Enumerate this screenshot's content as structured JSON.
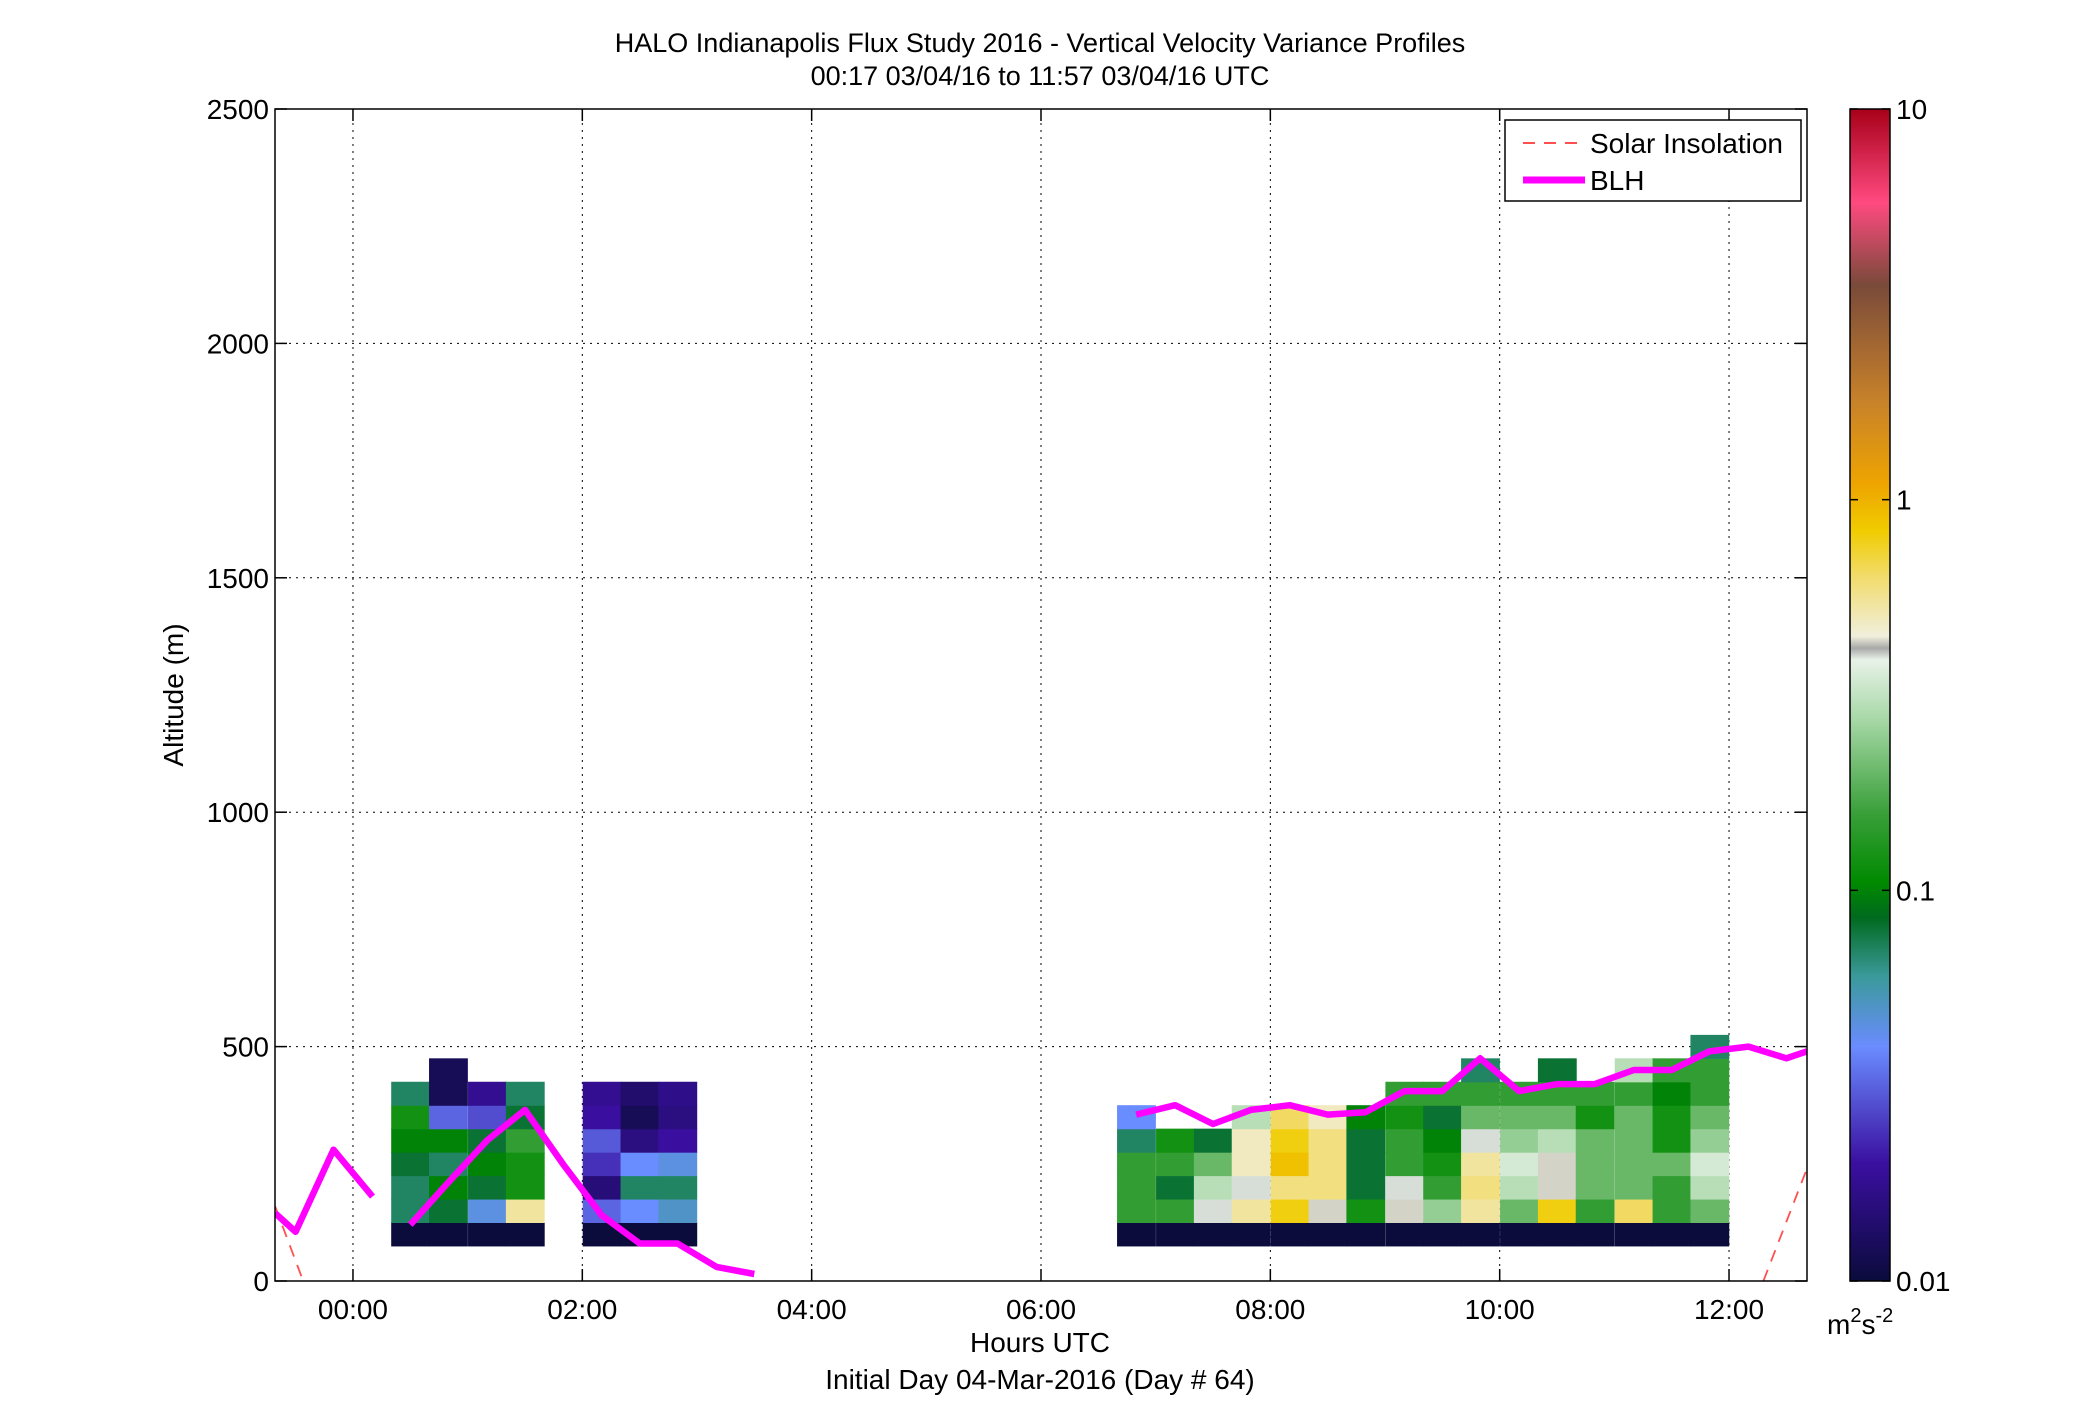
{
  "chart_data": {
    "type": "heatmap",
    "title": "HALO Indianapolis Flux Study 2016 - Vertical Velocity Variance Profiles",
    "subtitle": "00:17 03/04/16 to 11:57 03/04/16  UTC",
    "xlabel": "Hours UTC",
    "xlabel2": "Initial Day 04-Mar-2016 (Day # 64)",
    "ylabel": "Altitude (m)",
    "xlim": [
      -0.68,
      12.68
    ],
    "ylim": [
      0,
      2500
    ],
    "x_ticks": [
      0,
      2,
      4,
      6,
      8,
      10,
      12
    ],
    "x_tick_labels": [
      "00:00",
      "02:00",
      "04:00",
      "06:00",
      "08:00",
      "10:00",
      "12:00"
    ],
    "y_ticks": [
      0,
      500,
      1000,
      1500,
      2000,
      2500
    ],
    "y_tick_labels": [
      "0",
      "500",
      "1000",
      "1500",
      "2000",
      "2500"
    ],
    "grid": true,
    "legend_position": "top-right",
    "colorbar": {
      "scale": "log",
      "min": 0.01,
      "max": 10,
      "ticks": [
        0.01,
        0.1,
        1,
        10
      ],
      "tick_labels": [
        "0.01",
        "0.1",
        "1",
        "10"
      ],
      "units_base": "m",
      "units_sup1": "2",
      "units_mid": "s",
      "units_sup2": "-2"
    },
    "variance_columns": [
      {
        "t": 0.5,
        "cells": [
          [
            100,
            0.01
          ],
          [
            150,
            0.07
          ],
          [
            200,
            0.07
          ],
          [
            250,
            0.08
          ],
          [
            300,
            0.1
          ],
          [
            350,
            0.12
          ],
          [
            400,
            0.07
          ]
        ]
      },
      {
        "t": 0.83,
        "cells": [
          [
            100,
            0.01
          ],
          [
            150,
            0.08
          ],
          [
            200,
            0.1
          ],
          [
            250,
            0.07
          ],
          [
            300,
            0.1
          ],
          [
            350,
            0.032
          ],
          [
            400,
            0.012
          ],
          [
            450,
            0.012
          ]
        ]
      },
      {
        "t": 1.17,
        "cells": [
          [
            100,
            0.01
          ],
          [
            150,
            0.045
          ],
          [
            200,
            0.08
          ],
          [
            250,
            0.1
          ],
          [
            300,
            0.08
          ],
          [
            350,
            0.028
          ],
          [
            400,
            0.018
          ]
        ]
      },
      {
        "t": 1.5,
        "cells": [
          [
            100,
            0.01
          ],
          [
            150,
            0.55
          ],
          [
            200,
            0.12
          ],
          [
            250,
            0.12
          ],
          [
            300,
            0.15
          ],
          [
            350,
            0.08
          ],
          [
            400,
            0.07
          ]
        ]
      },
      {
        "t": 2.17,
        "cells": [
          [
            100,
            0.01
          ],
          [
            150,
            0.032
          ],
          [
            200,
            0.015
          ],
          [
            250,
            0.024
          ],
          [
            300,
            0.03
          ],
          [
            350,
            0.02
          ],
          [
            400,
            0.018
          ]
        ]
      },
      {
        "t": 2.5,
        "cells": [
          [
            100,
            0.01
          ],
          [
            150,
            0.04
          ],
          [
            200,
            0.07
          ],
          [
            250,
            0.04
          ],
          [
            300,
            0.016
          ],
          [
            350,
            0.012
          ],
          [
            400,
            0.014
          ]
        ]
      },
      {
        "t": 2.83,
        "cells": [
          [
            100,
            0.01
          ],
          [
            150,
            0.05
          ],
          [
            200,
            0.07
          ],
          [
            250,
            0.045
          ],
          [
            300,
            0.02
          ],
          [
            350,
            0.016
          ],
          [
            400,
            0.017
          ]
        ]
      },
      {
        "t": 6.83,
        "cells": [
          [
            100,
            0.01
          ],
          [
            150,
            0.15
          ],
          [
            200,
            0.15
          ],
          [
            250,
            0.15
          ],
          [
            300,
            0.07
          ],
          [
            350,
            0.04
          ]
        ]
      },
      {
        "t": 7.17,
        "cells": [
          [
            100,
            0.01
          ],
          [
            150,
            0.15
          ],
          [
            200,
            0.08
          ],
          [
            250,
            0.15
          ],
          [
            300,
            0.12
          ]
        ]
      },
      {
        "t": 7.5,
        "cells": [
          [
            100,
            0.01
          ],
          [
            150,
            0.4
          ],
          [
            200,
            0.3
          ],
          [
            250,
            0.2
          ],
          [
            300,
            0.08
          ]
        ]
      },
      {
        "t": 7.83,
        "cells": [
          [
            100,
            0.01
          ],
          [
            150,
            0.55
          ],
          [
            200,
            0.4
          ],
          [
            250,
            0.5
          ],
          [
            300,
            0.5
          ],
          [
            350,
            0.3
          ]
        ]
      },
      {
        "t": 8.17,
        "cells": [
          [
            100,
            0.01
          ],
          [
            150,
            0.8
          ],
          [
            200,
            0.6
          ],
          [
            250,
            0.9
          ],
          [
            300,
            0.8
          ],
          [
            350,
            0.65
          ]
        ]
      },
      {
        "t": 8.5,
        "cells": [
          [
            100,
            0.01
          ],
          [
            150,
            0.45
          ],
          [
            200,
            0.6
          ],
          [
            250,
            0.6
          ],
          [
            300,
            0.6
          ],
          [
            350,
            0.5
          ]
        ]
      },
      {
        "t": 8.83,
        "cells": [
          [
            100,
            0.01
          ],
          [
            150,
            0.12
          ],
          [
            200,
            0.08
          ],
          [
            250,
            0.08
          ],
          [
            300,
            0.08
          ],
          [
            350,
            0.1
          ]
        ]
      },
      {
        "t": 9.17,
        "cells": [
          [
            100,
            0.01
          ],
          [
            150,
            0.45
          ],
          [
            200,
            0.4
          ],
          [
            250,
            0.15
          ],
          [
            300,
            0.15
          ],
          [
            350,
            0.12
          ],
          [
            400,
            0.15
          ]
        ]
      },
      {
        "t": 9.5,
        "cells": [
          [
            100,
            0.01
          ],
          [
            150,
            0.25
          ],
          [
            200,
            0.15
          ],
          [
            250,
            0.12
          ],
          [
            300,
            0.1
          ],
          [
            350,
            0.08
          ],
          [
            400,
            0.15
          ]
        ]
      },
      {
        "t": 9.83,
        "cells": [
          [
            100,
            0.01
          ],
          [
            150,
            0.55
          ],
          [
            200,
            0.6
          ],
          [
            250,
            0.55
          ],
          [
            300,
            0.4
          ],
          [
            350,
            0.2
          ],
          [
            400,
            0.15
          ],
          [
            450,
            0.07
          ]
        ]
      },
      {
        "t": 10.17,
        "cells": [
          [
            100,
            0.01
          ],
          [
            150,
            0.2
          ],
          [
            200,
            0.3
          ],
          [
            250,
            0.35
          ],
          [
            300,
            0.25
          ],
          [
            350,
            0.2
          ],
          [
            400,
            0.15
          ]
        ]
      },
      {
        "t": 10.5,
        "cells": [
          [
            100,
            0.01
          ],
          [
            150,
            0.8
          ],
          [
            200,
            0.45
          ],
          [
            250,
            0.45
          ],
          [
            300,
            0.3
          ],
          [
            350,
            0.2
          ],
          [
            400,
            0.15
          ],
          [
            450,
            0.08
          ]
        ]
      },
      {
        "t": 10.83,
        "cells": [
          [
            100,
            0.01
          ],
          [
            150,
            0.15
          ],
          [
            200,
            0.2
          ],
          [
            250,
            0.2
          ],
          [
            300,
            0.2
          ],
          [
            350,
            0.12
          ],
          [
            400,
            0.15
          ]
        ]
      },
      {
        "t": 11.17,
        "cells": [
          [
            100,
            0.01
          ],
          [
            150,
            0.65
          ],
          [
            200,
            0.2
          ],
          [
            250,
            0.2
          ],
          [
            300,
            0.2
          ],
          [
            350,
            0.2
          ],
          [
            400,
            0.15
          ],
          [
            450,
            0.3
          ]
        ]
      },
      {
        "t": 11.5,
        "cells": [
          [
            100,
            0.01
          ],
          [
            150,
            0.15
          ],
          [
            200,
            0.15
          ],
          [
            250,
            0.2
          ],
          [
            300,
            0.12
          ],
          [
            350,
            0.12
          ],
          [
            400,
            0.1
          ],
          [
            450,
            0.15
          ]
        ]
      },
      {
        "t": 11.83,
        "cells": [
          [
            100,
            0.01
          ],
          [
            150,
            0.2
          ],
          [
            200,
            0.3
          ],
          [
            250,
            0.35
          ],
          [
            300,
            0.25
          ],
          [
            350,
            0.2
          ],
          [
            400,
            0.15
          ],
          [
            450,
            0.15
          ],
          [
            500,
            0.07
          ]
        ]
      }
    ],
    "series": [
      {
        "name": "Solar Insolation",
        "color": "#ff5050",
        "style": "dashed",
        "segments": [
          [
            [
              -0.68,
              160
            ],
            [
              -0.45,
              10
            ]
          ],
          [
            [
              12.3,
              0
            ],
            [
              12.68,
              240
            ]
          ]
        ]
      },
      {
        "name": "BLH",
        "color": "#ff00ff",
        "style": "solid",
        "segments": [
          [
            [
              -0.68,
              145
            ],
            [
              -0.5,
              105
            ],
            [
              -0.17,
              280
            ],
            [
              0.17,
              180
            ]
          ],
          [
            [
              0.5,
              120
            ],
            [
              0.83,
              210
            ],
            [
              1.17,
              300
            ],
            [
              1.5,
              365
            ],
            [
              1.83,
              250
            ],
            [
              2.17,
              140
            ],
            [
              2.5,
              80
            ],
            [
              2.83,
              80
            ],
            [
              3.17,
              30
            ],
            [
              3.5,
              15
            ]
          ],
          [
            [
              6.83,
              355
            ],
            [
              7.17,
              375
            ],
            [
              7.5,
              335
            ],
            [
              7.83,
              365
            ],
            [
              8.17,
              375
            ],
            [
              8.5,
              355
            ],
            [
              8.83,
              360
            ],
            [
              9.17,
              405
            ],
            [
              9.5,
              405
            ],
            [
              9.83,
              475
            ],
            [
              10.17,
              405
            ],
            [
              10.5,
              420
            ],
            [
              10.83,
              420
            ],
            [
              11.17,
              450
            ],
            [
              11.5,
              450
            ],
            [
              11.83,
              490
            ],
            [
              12.17,
              500
            ],
            [
              12.5,
              475
            ],
            [
              12.68,
              490
            ]
          ]
        ]
      }
    ]
  }
}
